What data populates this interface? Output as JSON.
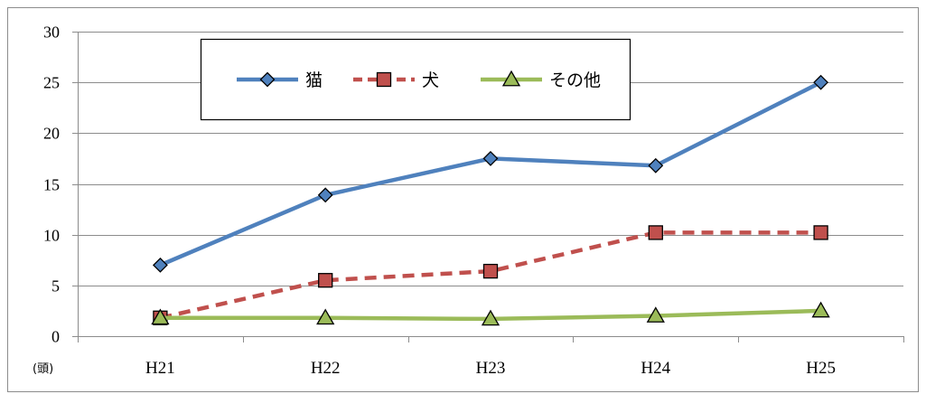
{
  "chart_data": {
    "type": "line",
    "categories": [
      "H21",
      "H22",
      "H23",
      "H24",
      "H25"
    ],
    "unit_label": "(頭)",
    "ylim": [
      0,
      30
    ],
    "yticks": [
      0,
      5,
      10,
      15,
      20,
      25,
      30
    ],
    "grid": true,
    "legend_position": "top-center",
    "series": [
      {
        "name": "猫",
        "values": [
          7,
          13.9,
          17.5,
          16.8,
          25
        ],
        "color": "#4f81bd",
        "marker": "diamond",
        "dash": "solid"
      },
      {
        "name": "犬",
        "values": [
          1.8,
          5.5,
          6.4,
          10.2,
          10.2
        ],
        "color": "#c0504d",
        "marker": "square",
        "dash": "dashed"
      },
      {
        "name": "その他",
        "values": [
          1.8,
          1.8,
          1.7,
          2.0,
          2.5
        ],
        "color": "#9bbb59",
        "marker": "triangle",
        "dash": "solid"
      }
    ]
  }
}
